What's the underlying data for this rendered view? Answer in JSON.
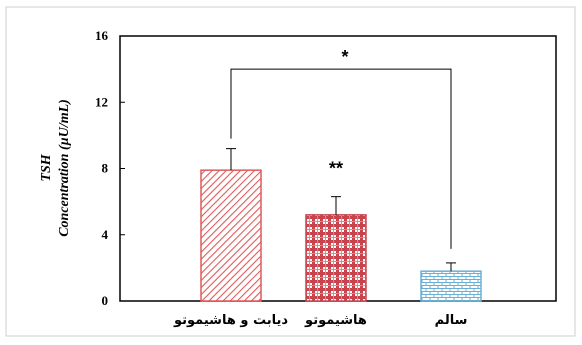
{
  "chart_data": {
    "type": "bar",
    "categories": [
      "دیابت و هاشیموتو",
      "هاشیموتو",
      "سالم"
    ],
    "values": [
      7.9,
      5.2,
      1.8
    ],
    "errors": [
      1.3,
      1.1,
      0.5
    ],
    "ylabel_line1": "TSH",
    "ylabel_line2": "Concentration (µU/mL)",
    "ylim": [
      0,
      16
    ],
    "yticks": [
      "0",
      "4",
      "8",
      "12",
      "16"
    ],
    "grid": false,
    "bar_styles": [
      {
        "pattern": "diagonal",
        "color": "#e05a5a"
      },
      {
        "pattern": "plaid",
        "color": "#c8444d"
      },
      {
        "pattern": "brick",
        "color": "#6ab0d6"
      }
    ],
    "annotations": {
      "bracket_label": "*",
      "bar2_label": "**"
    }
  }
}
